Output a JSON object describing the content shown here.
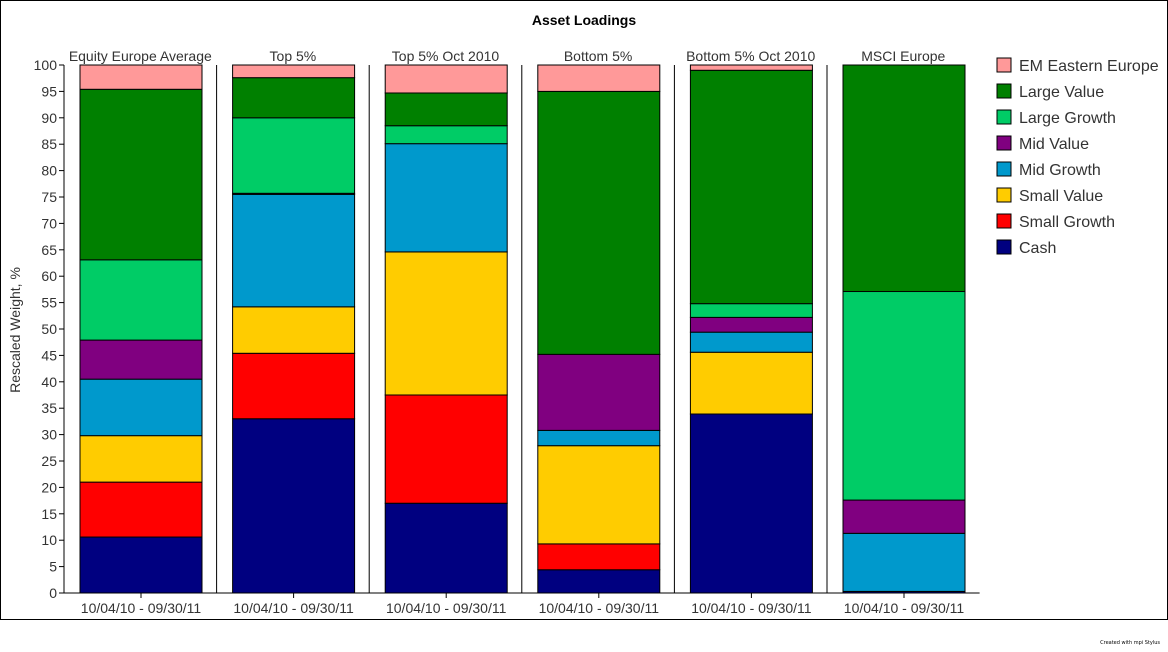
{
  "chart_data": {
    "type": "bar",
    "stacked": true,
    "title": "Asset Loadings",
    "ylabel": "Rescaled Weight, %",
    "ylim": [
      0,
      100
    ],
    "yticks": [
      0,
      5,
      10,
      15,
      20,
      25,
      30,
      35,
      40,
      45,
      50,
      55,
      60,
      65,
      70,
      75,
      80,
      85,
      90,
      95,
      100
    ],
    "legend_position": "right",
    "panels": [
      {
        "title": "Equity Europe Average",
        "category": "10/04/10 - 09/30/11",
        "values": {
          "Cash": 10.6,
          "Small Growth": 10.4,
          "Small Value": 8.8,
          "Mid Growth": 10.7,
          "Mid Value": 7.4,
          "Large Growth": 15.2,
          "Large Value": 32.3,
          "EM Eastern Europe": 4.6
        }
      },
      {
        "title": "Top 5%",
        "category": "10/04/10 - 09/30/11",
        "values": {
          "Cash": 33.0,
          "Small Growth": 12.4,
          "Small Value": 8.8,
          "Mid Growth": 21.3,
          "Mid Value": 0.2,
          "Large Growth": 14.3,
          "Large Value": 7.6,
          "EM Eastern Europe": 2.4
        }
      },
      {
        "title": "Top 5% Oct 2010",
        "category": "10/04/10 - 09/30/11",
        "values": {
          "Cash": 17.0,
          "Small Growth": 20.5,
          "Small Value": 27.1,
          "Mid Growth": 20.5,
          "Mid Value": 0.0,
          "Large Growth": 3.4,
          "Large Value": 6.2,
          "EM Eastern Europe": 5.3
        }
      },
      {
        "title": "Bottom 5%",
        "category": "10/04/10 - 09/30/11",
        "values": {
          "Cash": 4.4,
          "Small Growth": 4.9,
          "Small Value": 18.6,
          "Mid Growth": 2.9,
          "Mid Value": 14.4,
          "Large Growth": 0.0,
          "Large Value": 49.8,
          "EM Eastern Europe": 5.0
        }
      },
      {
        "title": "Bottom 5% Oct 2010",
        "category": "10/04/10 - 09/30/11",
        "values": {
          "Cash": 33.9,
          "Small Growth": 0.0,
          "Small Value": 11.7,
          "Mid Growth": 3.8,
          "Mid Value": 2.8,
          "Large Growth": 2.6,
          "Large Value": 44.2,
          "EM Eastern Europe": 1.0
        }
      },
      {
        "title": "MSCI Europe",
        "category": "10/04/10 - 09/30/11",
        "values": {
          "Cash": 0.3,
          "Small Growth": 0.0,
          "Small Value": 0.0,
          "Mid Growth": 11.0,
          "Mid Value": 6.3,
          "Large Growth": 39.5,
          "Large Value": 42.9,
          "EM Eastern Europe": 0.0
        }
      }
    ],
    "series": [
      {
        "name": "Cash",
        "color": "#000080"
      },
      {
        "name": "Small Growth",
        "color": "#FF0000"
      },
      {
        "name": "Small Value",
        "color": "#FFCC00"
      },
      {
        "name": "Mid Growth",
        "color": "#0099CC"
      },
      {
        "name": "Mid Value",
        "color": "#800080"
      },
      {
        "name": "Large Growth",
        "color": "#00CC66"
      },
      {
        "name": "Large Value",
        "color": "#008000"
      },
      {
        "name": "EM Eastern Europe",
        "color": "#FF9999"
      }
    ],
    "legend_order": [
      "EM Eastern Europe",
      "Large Value",
      "Large Growth",
      "Mid Value",
      "Mid Growth",
      "Small Value",
      "Small Growth",
      "Cash"
    ]
  },
  "footer": {
    "note": "Created with mpi Stylus"
  }
}
